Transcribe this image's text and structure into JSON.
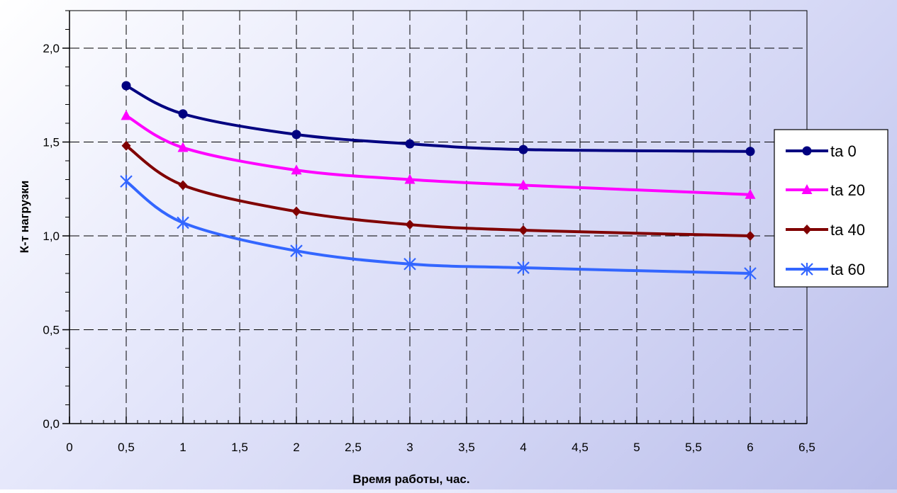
{
  "chart_data": {
    "type": "line",
    "title": "",
    "xlabel": "Время работы, час.",
    "ylabel": "К-т нагрузки",
    "xlim": [
      0,
      6.5
    ],
    "ylim": [
      0,
      2.2
    ],
    "x_ticks": [
      0,
      0.5,
      1,
      1.5,
      2,
      2.5,
      3,
      3.5,
      4,
      4.5,
      5,
      5.5,
      6,
      6.5
    ],
    "x_tick_labels": [
      "0",
      "0,5",
      "1",
      "1,5",
      "2",
      "2,5",
      "3",
      "3,5",
      "4",
      "4,5",
      "5",
      "5,5",
      "6",
      "6,5"
    ],
    "y_ticks": [
      0,
      0.5,
      1,
      1.5,
      2
    ],
    "y_tick_labels": [
      "0,0",
      "0,5",
      "1,0",
      "1,5",
      "2,0"
    ],
    "grid": true,
    "legend_position": "right",
    "x": [
      0.5,
      1,
      2,
      3,
      4,
      6
    ],
    "series": [
      {
        "name": "ta 0",
        "color": "#000080",
        "marker": "circle",
        "values": [
          1.8,
          1.65,
          1.54,
          1.49,
          1.46,
          1.45
        ]
      },
      {
        "name": "ta 20",
        "color": "#ff00ff",
        "marker": "triangle",
        "values": [
          1.64,
          1.47,
          1.35,
          1.3,
          1.27,
          1.22
        ]
      },
      {
        "name": "ta 40",
        "color": "#800000",
        "marker": "diamond",
        "values": [
          1.48,
          1.27,
          1.13,
          1.06,
          1.03,
          1.0
        ]
      },
      {
        "name": "ta 60",
        "color": "#3366ff",
        "marker": "star",
        "values": [
          1.29,
          1.07,
          0.92,
          0.85,
          0.83,
          0.8
        ]
      }
    ]
  }
}
